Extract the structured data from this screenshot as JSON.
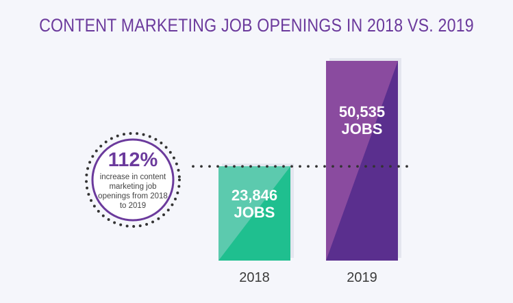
{
  "header": {
    "title": "CONTENT MARKETING JOB OPENINGS IN 2018 VS. 2019"
  },
  "callout": {
    "value": "112%",
    "text": "increase in content marketing job openings from 2018 to 2019"
  },
  "colors": {
    "title": "#6b3a9c",
    "bar_2018": "#1fbf8f",
    "bar_2018_light": "#5ccaae",
    "bar_2019": "#5a2f8e",
    "bar_2019_light": "#8a4b9f",
    "dots": "#333333",
    "ring": "#6b3a9c"
  },
  "chart_data": {
    "type": "bar",
    "title": "CONTENT MARKETING JOB OPENINGS IN 2018 VS. 2019",
    "categories": [
      "2018",
      "2019"
    ],
    "values": [
      23846,
      50535
    ],
    "data_labels": [
      [
        "23,846",
        "JOBS"
      ],
      [
        "50,535",
        "JOBS"
      ]
    ],
    "ylim": [
      0,
      50535
    ],
    "grid": false,
    "legend": "none"
  }
}
